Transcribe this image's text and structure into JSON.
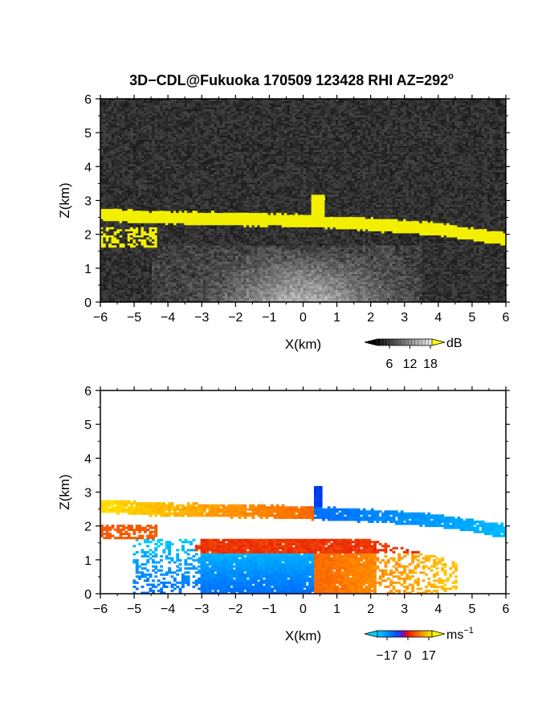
{
  "title": "3D−CDL@Fukuoka 170509 123428 RHI AZ=292",
  "title_sup": "o",
  "chart_data": [
    {
      "type": "heatmap",
      "panel": "top",
      "quantity": "reflectivity",
      "xlabel": "X(km)",
      "ylabel": "Z(km)",
      "xlim": [
        -6,
        6
      ],
      "ylim": [
        0,
        6
      ],
      "xticks": [
        -6,
        -5,
        -4,
        -3,
        -2,
        -1,
        0,
        1,
        2,
        3,
        4,
        5,
        6
      ],
      "yticks": [
        0,
        1,
        2,
        3,
        4,
        5,
        6
      ],
      "xtick_labels": [
        "−6",
        "−5",
        "−4",
        "−3",
        "−2",
        "−1",
        "0",
        "1",
        "2",
        "3",
        "4",
        "5",
        "6"
      ],
      "ytick_labels": [
        "0",
        "1",
        "2",
        "3",
        "4",
        "5",
        "6"
      ],
      "colorbar": {
        "ticks": [
          6,
          12,
          18
        ],
        "tick_labels": [
          "6",
          "12",
          "18"
        ],
        "unit": "dB",
        "low_color": "#000000",
        "high_color": "#ffff00"
      },
      "features": {
        "cloud_layer_z_km": [
          [
            -6,
            2.6
          ],
          [
            -4.5,
            2.5
          ],
          [
            -2,
            2.45
          ],
          [
            0,
            2.4
          ],
          [
            2,
            2.3
          ],
          [
            4,
            2.15
          ],
          [
            6,
            1.85
          ]
        ],
        "cloud_turret": {
          "x_km": 0.45,
          "z_top_km": 3.2
        },
        "boundary_layer_top_km": 1.7
      }
    },
    {
      "type": "heatmap",
      "panel": "bottom",
      "quantity": "doppler velocity",
      "xlabel": "X(km)",
      "ylabel": "Z(km)",
      "xlim": [
        -6,
        6
      ],
      "ylim": [
        0,
        6
      ],
      "xticks": [
        -6,
        -5,
        -4,
        -3,
        -2,
        -1,
        0,
        1,
        2,
        3,
        4,
        5,
        6
      ],
      "yticks": [
        0,
        1,
        2,
        3,
        4,
        5,
        6
      ],
      "xtick_labels": [
        "−6",
        "−5",
        "−4",
        "−3",
        "−2",
        "−1",
        "0",
        "1",
        "2",
        "3",
        "4",
        "5",
        "6"
      ],
      "ytick_labels": [
        "0",
        "1",
        "2",
        "3",
        "4",
        "5",
        "6"
      ],
      "colorbar": {
        "ticks": [
          -17,
          0,
          17
        ],
        "tick_labels": [
          "−17",
          "0",
          "17"
        ],
        "unit": "ms",
        "unit_sup": "−1",
        "low_color": "#00ccff",
        "high_color": "#ffff00"
      },
      "features": {
        "cloud_layer_z_km": [
          [
            -6,
            2.6
          ],
          [
            -4.5,
            2.5
          ],
          [
            -2,
            2.45
          ],
          [
            0,
            2.4
          ],
          [
            2,
            2.3
          ],
          [
            4,
            2.15
          ],
          [
            6,
            1.85
          ]
        ],
        "velocity_sign_change_x_km": 0.3,
        "boundary_layer_top_km": 1.6,
        "approx_velocity_ms": {
          "upper_left": 10,
          "upper_right": -10,
          "lower_left": -14,
          "lower_right": 12
        }
      }
    }
  ]
}
